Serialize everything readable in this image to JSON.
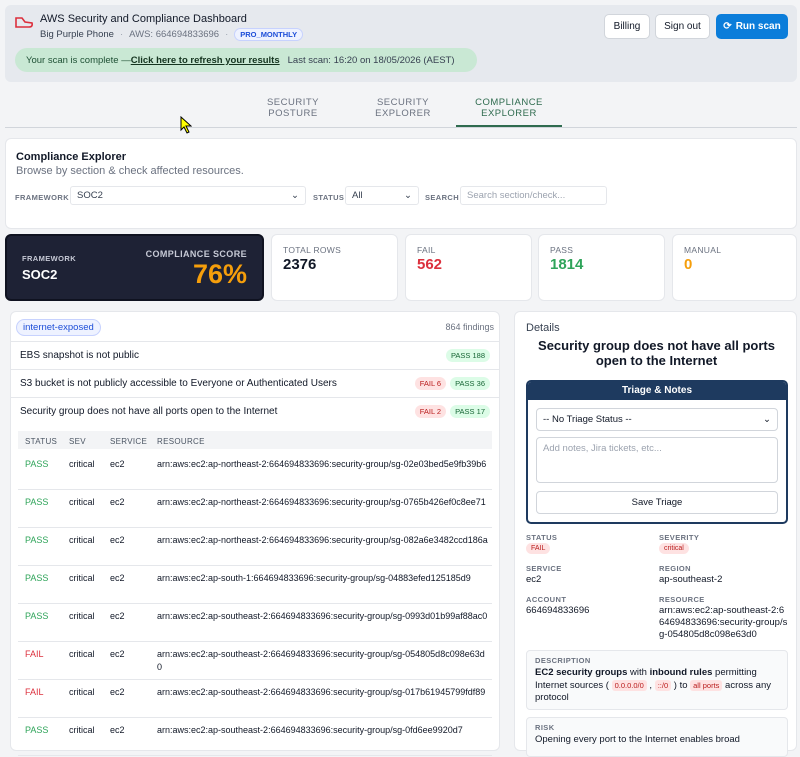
{
  "header": {
    "title": "AWS Security and Compliance Dashboard",
    "account": "Big Purple Phone",
    "aws": "AWS: 664694833696",
    "plan": "PRO_MONTHLY",
    "buttons": [
      "Billing",
      "Sign out",
      "Run scan"
    ]
  },
  "banner": {
    "text": "Your scan is complete — ",
    "link": "Click here to refresh your results",
    "last_scan": "Last scan: 16:20 on 18/05/2026 (AEST)"
  },
  "tabs": [
    {
      "label": "SECURITY POSTURE"
    },
    {
      "label": "SECURITY EXPLORER"
    },
    {
      "label": "COMPLIANCE EXPLORER",
      "active": true
    }
  ],
  "explorer": {
    "title": "Compliance Explorer",
    "subtitle": "Browse by section & check affected resources.",
    "filters": [
      {
        "label": "FRAMEWORK",
        "value": "SOC2"
      },
      {
        "label": "STATUS",
        "value": "All"
      },
      {
        "label": "SEARCH",
        "placeholder": "Search section/check..."
      }
    ]
  },
  "score": {
    "framework_label": "FRAMEWORK",
    "framework": "SOC2",
    "score_label": "COMPLIANCE SCORE",
    "score": "76%"
  },
  "stats": [
    {
      "label": "TOTAL ROWS",
      "value": "2376",
      "color": "#111827"
    },
    {
      "label": "FAIL",
      "value": "562",
      "color": "#dc2f3c"
    },
    {
      "label": "PASS",
      "value": "1814",
      "color": "#2fa45a"
    },
    {
      "label": "MANUAL",
      "value": "0",
      "color": "#f59e0b"
    }
  ],
  "findings": {
    "tag": "internet-exposed",
    "count": "864 findings",
    "checks": [
      {
        "title": "EBS snapshot is not public",
        "badges": [
          {
            "text": "PASS 188",
            "kind": "pass"
          }
        ]
      },
      {
        "title": "S3 bucket is not publicly accessible to Everyone or Authenticated Users",
        "badges": [
          {
            "text": "FAIL 6",
            "kind": "fail"
          },
          {
            "text": "PASS 36",
            "kind": "pass"
          }
        ]
      },
      {
        "title": "Security group does not have all ports open to the Internet",
        "badges": [
          {
            "text": "FAIL 2",
            "kind": "fail"
          },
          {
            "text": "PASS 17",
            "kind": "pass"
          }
        ]
      }
    ],
    "table": {
      "columns": [
        "STATUS",
        "SEV",
        "SERVICE",
        "RESOURCE"
      ],
      "rows": [
        [
          "PASS",
          "critical",
          "ec2",
          "arn:aws:ec2:ap-northeast-2:664694833696:security-group/sg-02e03bed5e9fb39b6"
        ],
        [
          "PASS",
          "critical",
          "ec2",
          "arn:aws:ec2:ap-northeast-2:664694833696:security-group/sg-0765b426ef0c8ee71"
        ],
        [
          "PASS",
          "critical",
          "ec2",
          "arn:aws:ec2:ap-northeast-2:664694833696:security-group/sg-082a6e3482ccd186a"
        ],
        [
          "PASS",
          "critical",
          "ec2",
          "arn:aws:ec2:ap-south-1:664694833696:security-group/sg-04883efed125185d9"
        ],
        [
          "PASS",
          "critical",
          "ec2",
          "arn:aws:ec2:ap-southeast-2:664694833696:security-group/sg-0993d01b99af88ac0"
        ],
        [
          "FAIL",
          "critical",
          "ec2",
          "arn:aws:ec2:ap-southeast-2:664694833696:security-group/sg-054805d8c098e63d0"
        ],
        [
          "FAIL",
          "critical",
          "ec2",
          "arn:aws:ec2:ap-southeast-2:664694833696:security-group/sg-017b61945799fdf89"
        ],
        [
          "PASS",
          "critical",
          "ec2",
          "arn:aws:ec2:ap-southeast-2:664694833696:security-group/sg-0fd6ee9920d7"
        ]
      ]
    }
  },
  "details": {
    "label": "Details",
    "title": "Security group does not have all ports open to the Internet",
    "triage": {
      "title": "Triage & Notes",
      "status": "-- No Triage Status --",
      "notes_placeholder": "Add notes, Jira tickets, etc...",
      "button": "Save Triage"
    },
    "fields": [
      {
        "label": "STATUS",
        "value": "FAIL",
        "badge": "fail"
      },
      {
        "label": "SEVERITY",
        "value": "critical",
        "badge": "fail"
      },
      {
        "label": "SERVICE",
        "value": "ec2"
      },
      {
        "label": "REGION",
        "value": "ap-southeast-2"
      },
      {
        "label": "ACCOUNT",
        "value": "664694833696"
      },
      {
        "label": "RESOURCE",
        "value": "arn:aws:ec2:ap-southeast-2:664694833696:security-group/sg-054805d8c098e63d0"
      }
    ],
    "description": {
      "label": "DESCRIPTION",
      "parts": [
        {
          "text": "EC2 security groups",
          "kind": "bold"
        },
        {
          "text": " with ",
          "kind": "plain"
        },
        {
          "text": "inbound rules",
          "kind": "bold"
        },
        {
          "text": " permitting Internet sources ( ",
          "kind": "plain"
        },
        {
          "text": "0.0.0.0/0",
          "kind": "code"
        },
        {
          "text": " , ",
          "kind": "plain"
        },
        {
          "text": "::/0",
          "kind": "code"
        },
        {
          "text": " ) to ",
          "kind": "plain"
        },
        {
          "text": "all ports",
          "kind": "code"
        },
        {
          "text": " across any protocol",
          "kind": "plain"
        }
      ]
    },
    "risk": {
      "label": "RISK",
      "text": "Opening every port to the Internet enables broad"
    }
  }
}
